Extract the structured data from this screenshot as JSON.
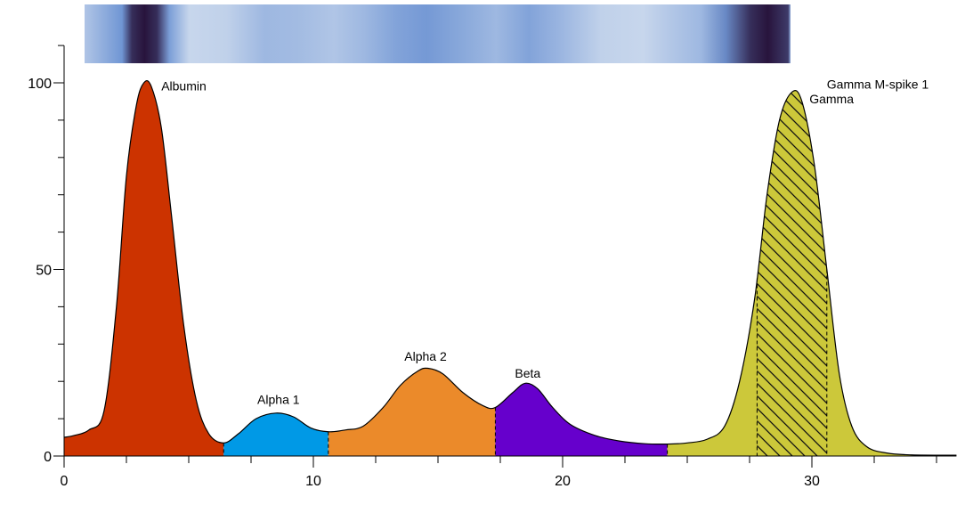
{
  "chart_data": {
    "type": "area",
    "title": "",
    "xlabel": "",
    "ylabel": "",
    "xlim": [
      0,
      35.8
    ],
    "ylim": [
      0,
      110
    ],
    "x_ticks": [
      0,
      10,
      20,
      30
    ],
    "y_ticks": [
      0,
      50,
      100
    ],
    "x_minor_step": 2.5,
    "y_minor_step": 10,
    "grid": false,
    "gel_strip": true,
    "curve": [
      [
        0,
        5
      ],
      [
        0.4,
        5.5
      ],
      [
        1,
        7
      ],
      [
        1.6,
        12
      ],
      [
        2.1,
        40
      ],
      [
        2.5,
        75
      ],
      [
        2.9,
        94
      ],
      [
        3.2,
        100
      ],
      [
        3.5,
        99
      ],
      [
        3.9,
        88
      ],
      [
        4.3,
        65
      ],
      [
        4.8,
        35
      ],
      [
        5.3,
        15
      ],
      [
        5.8,
        6
      ],
      [
        6.4,
        3.5
      ],
      [
        7.0,
        6
      ],
      [
        7.7,
        10
      ],
      [
        8.5,
        11.5
      ],
      [
        9.2,
        10.5
      ],
      [
        9.9,
        7.5
      ],
      [
        10.6,
        6.5
      ],
      [
        11.3,
        7
      ],
      [
        12.0,
        8
      ],
      [
        12.8,
        13
      ],
      [
        13.5,
        19
      ],
      [
        14.2,
        22.8
      ],
      [
        14.6,
        23.5
      ],
      [
        15.2,
        22
      ],
      [
        16.0,
        17
      ],
      [
        16.8,
        13.5
      ],
      [
        17.3,
        13
      ],
      [
        18.0,
        17
      ],
      [
        18.5,
        19.5
      ],
      [
        19.0,
        18
      ],
      [
        19.6,
        13
      ],
      [
        20.3,
        8.5
      ],
      [
        21.3,
        5.5
      ],
      [
        22.3,
        4
      ],
      [
        23.3,
        3.3
      ],
      [
        24.2,
        3.2
      ],
      [
        25.0,
        3.5
      ],
      [
        25.8,
        4.5
      ],
      [
        26.5,
        8
      ],
      [
        27.1,
        20
      ],
      [
        27.7,
        42
      ],
      [
        28.2,
        70
      ],
      [
        28.7,
        90
      ],
      [
        29.2,
        97.5
      ],
      [
        29.6,
        95
      ],
      [
        30.1,
        78
      ],
      [
        30.6,
        50
      ],
      [
        31.1,
        22
      ],
      [
        31.6,
        8
      ],
      [
        32.2,
        2.5
      ],
      [
        33.0,
        0.8
      ],
      [
        34.0,
        0.3
      ],
      [
        35.8,
        0.2
      ]
    ],
    "fractions": [
      {
        "name": "Albumin",
        "x_start": 0,
        "x_end": 6.4,
        "color": "#cc3300"
      },
      {
        "name": "Alpha 1",
        "x_start": 6.4,
        "x_end": 10.6,
        "color": "#0099e6"
      },
      {
        "name": "Alpha 2",
        "x_start": 10.6,
        "x_end": 17.3,
        "color": "#eb8a2a"
      },
      {
        "name": "Beta",
        "x_start": 17.3,
        "x_end": 24.2,
        "color": "#6600cc"
      },
      {
        "name": "Gamma",
        "x_start": 24.2,
        "x_end": 35.8,
        "color": "#ccc83a"
      }
    ],
    "m_spike": {
      "name": "Gamma M-spike 1",
      "x_start": 27.8,
      "x_end": 30.6,
      "pattern": "hatched"
    },
    "annotations": [
      {
        "text": "Albumin",
        "x": 3.9,
        "y": 98
      },
      {
        "text": "Alpha 1",
        "x": 8.6,
        "y": 14
      },
      {
        "text": "Alpha 2",
        "x": 14.5,
        "y": 25.5
      },
      {
        "text": "Beta",
        "x": 18.6,
        "y": 21
      },
      {
        "text": "Gamma",
        "x": 29.9,
        "y": 94.5
      },
      {
        "text": "Gamma M-spike 1",
        "x": 30.6,
        "y": 98.5
      }
    ],
    "band_profile": [
      {
        "x": 0.4,
        "v": 0.22
      },
      {
        "x": 2.3,
        "v": 0.5
      },
      {
        "x": 2.7,
        "v": 0.9
      },
      {
        "x": 3.2,
        "v": 1.0
      },
      {
        "x": 3.7,
        "v": 0.9
      },
      {
        "x": 4.2,
        "v": 0.45
      },
      {
        "x": 5.0,
        "v": 0.12
      },
      {
        "x": 6.5,
        "v": 0.15
      },
      {
        "x": 8.0,
        "v": 0.3
      },
      {
        "x": 9.3,
        "v": 0.28
      },
      {
        "x": 10.8,
        "v": 0.22
      },
      {
        "x": 12.0,
        "v": 0.3
      },
      {
        "x": 13.3,
        "v": 0.42
      },
      {
        "x": 14.5,
        "v": 0.48
      },
      {
        "x": 15.8,
        "v": 0.4
      },
      {
        "x": 17.3,
        "v": 0.3
      },
      {
        "x": 18.6,
        "v": 0.42
      },
      {
        "x": 19.8,
        "v": 0.32
      },
      {
        "x": 21.5,
        "v": 0.15
      },
      {
        "x": 23.2,
        "v": 0.12
      },
      {
        "x": 24.2,
        "v": 0.2
      },
      {
        "x": 25.5,
        "v": 0.3
      },
      {
        "x": 26.5,
        "v": 0.55
      },
      {
        "x": 27.5,
        "v": 0.9
      },
      {
        "x": 28.2,
        "v": 1.0
      },
      {
        "x": 29.0,
        "v": 0.85
      },
      {
        "x": 29.6,
        "v": 0.35
      },
      {
        "x": 30.4,
        "v": 0.1
      },
      {
        "x": 31.5,
        "v": 0.05
      },
      {
        "x": 32.4,
        "v": 0.04
      }
    ]
  }
}
